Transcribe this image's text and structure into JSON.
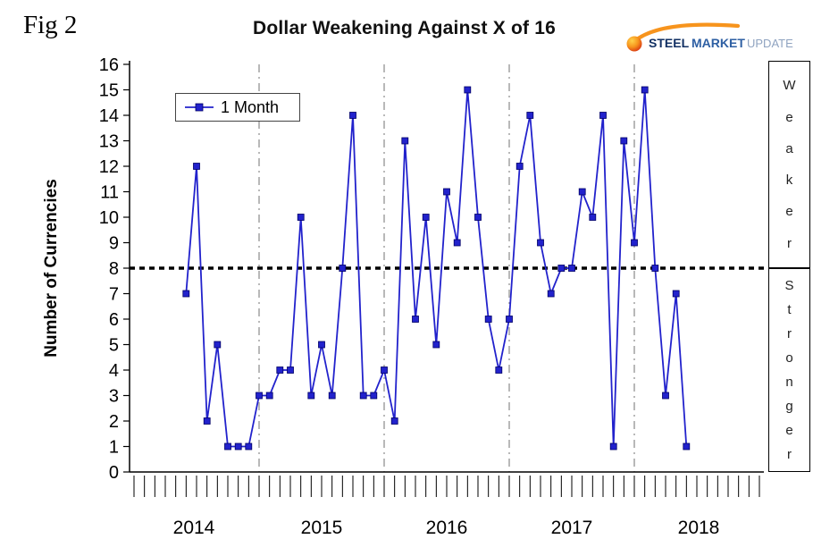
{
  "fig_label": "Fig 2",
  "title": "Dollar Weakening Against X of 16",
  "logo": {
    "steel": "STEEL",
    "market": "MARKET",
    "update": "UPDATE",
    "colors": {
      "steel": "#123063",
      "market": "#2e5fa3",
      "update": "#8fa3c0",
      "swoosh": "#f7941d",
      "ball": "#e8491f"
    }
  },
  "legend": {
    "series_label": "1 Month"
  },
  "y_axis": {
    "title": "Number of Currencies",
    "min": 0,
    "max": 16,
    "tick_step": 1
  },
  "x_axis": {
    "year_labels": [
      "2014",
      "2015",
      "2016",
      "2017",
      "2018"
    ]
  },
  "side_labels": {
    "upper": "Weaker",
    "lower": "Stronger"
  },
  "chart_data": {
    "type": "line",
    "title": "Dollar Weakening Against X of 16",
    "ylabel": "Number of Currencies",
    "ylim": [
      0,
      16
    ],
    "x_year_labels": [
      "2014",
      "2015",
      "2016",
      "2017",
      "2018"
    ],
    "interval": "monthly",
    "reference_line_y": 8,
    "legend_position": "top-left",
    "grid": "vertical-year-lines",
    "series": [
      {
        "name": "1 Month",
        "x_start_month": "2014-06",
        "values": [
          7,
          12,
          2,
          5,
          1,
          1,
          1,
          3,
          3,
          4,
          4,
          10,
          3,
          5,
          3,
          8,
          14,
          3,
          3,
          4,
          2,
          13,
          6,
          10,
          5,
          11,
          9,
          15,
          10,
          6,
          4,
          6,
          12,
          14,
          9,
          7,
          8,
          8,
          11,
          10,
          14,
          1,
          13,
          9,
          15,
          8,
          3,
          7,
          1
        ]
      }
    ],
    "colors": {
      "line": "#2222cc",
      "marker_edge": "#000066",
      "threshold": "#000000",
      "gridline": "#8a8a8a"
    }
  }
}
